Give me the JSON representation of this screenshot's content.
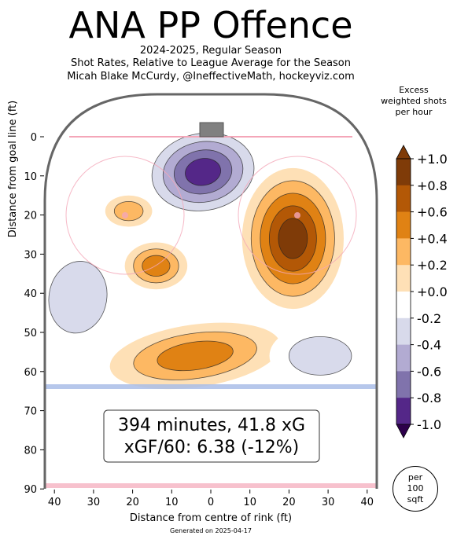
{
  "header": {
    "title": "ANA PP Offence",
    "subtitle_lines": [
      "2024-2025, Regular Season",
      "Shot Rates, Relative to League Average for the Season",
      "Micah Blake McCurdy, @IneffectiveMath, hockeyviz.com"
    ]
  },
  "footer": {
    "generated": "Generated on 2025-04-17"
  },
  "colors": {
    "positive_dark": "#7f3b08",
    "negative_dark": "#2d004b",
    "rink_border": "#666666",
    "goal_line": "#f4a6b8",
    "blue_line": "#a9bde8"
  },
  "stats_box": {
    "line1": "394 minutes, 41.8 xG",
    "line2": "xGF/60: 6.38 (-12%)"
  },
  "colorbar": {
    "title_lines": [
      "Excess",
      "weighted shots",
      "per hour"
    ],
    "tick_labels": [
      "+1.0",
      "+0.8",
      "+0.6",
      "+0.4",
      "+0.2",
      "+0.0",
      "-0.2",
      "-0.4",
      "-0.6",
      "-0.8",
      "-1.0"
    ],
    "bands": [
      {
        "color": "#7f3b08"
      },
      {
        "color": "#b35806"
      },
      {
        "color": "#e08214"
      },
      {
        "color": "#fdb863"
      },
      {
        "color": "#fee0b6"
      },
      {
        "color": "#ffffff"
      },
      {
        "color": "#d8daeb"
      },
      {
        "color": "#b2abd2"
      },
      {
        "color": "#8073ac"
      },
      {
        "color": "#542788"
      }
    ],
    "overflow_top": "#7f3b08",
    "overflow_bottom": "#2d004b"
  },
  "per_area": {
    "lines": [
      "per",
      "100",
      "sqft"
    ]
  },
  "chart_data": {
    "type": "heatmap",
    "xlabel": "Distance from centre of rink (ft)",
    "ylabel": "Distance from goal line (ft)",
    "xlim": [
      42.5,
      -42.5
    ],
    "ylim": [
      90,
      -10
    ],
    "x_ticks": [
      40,
      30,
      20,
      10,
      0,
      10,
      20,
      30,
      40
    ],
    "y_ticks": [
      0,
      10,
      20,
      30,
      40,
      50,
      60,
      70,
      80,
      90
    ],
    "color_range": [
      -1.0,
      1.0
    ],
    "regions": [
      {
        "x": -2,
        "y": 9,
        "value": -1.0
      },
      {
        "x": -21,
        "y": 19,
        "value": 0.4
      },
      {
        "x": -14,
        "y": 33,
        "value": 0.6
      },
      {
        "x": -34,
        "y": 41,
        "value": -0.3
      },
      {
        "x": -4,
        "y": 56,
        "value": 0.6
      },
      {
        "x": 21,
        "y": 26,
        "value": 1.0
      },
      {
        "x": 28,
        "y": 56,
        "value": -0.2
      }
    ]
  }
}
